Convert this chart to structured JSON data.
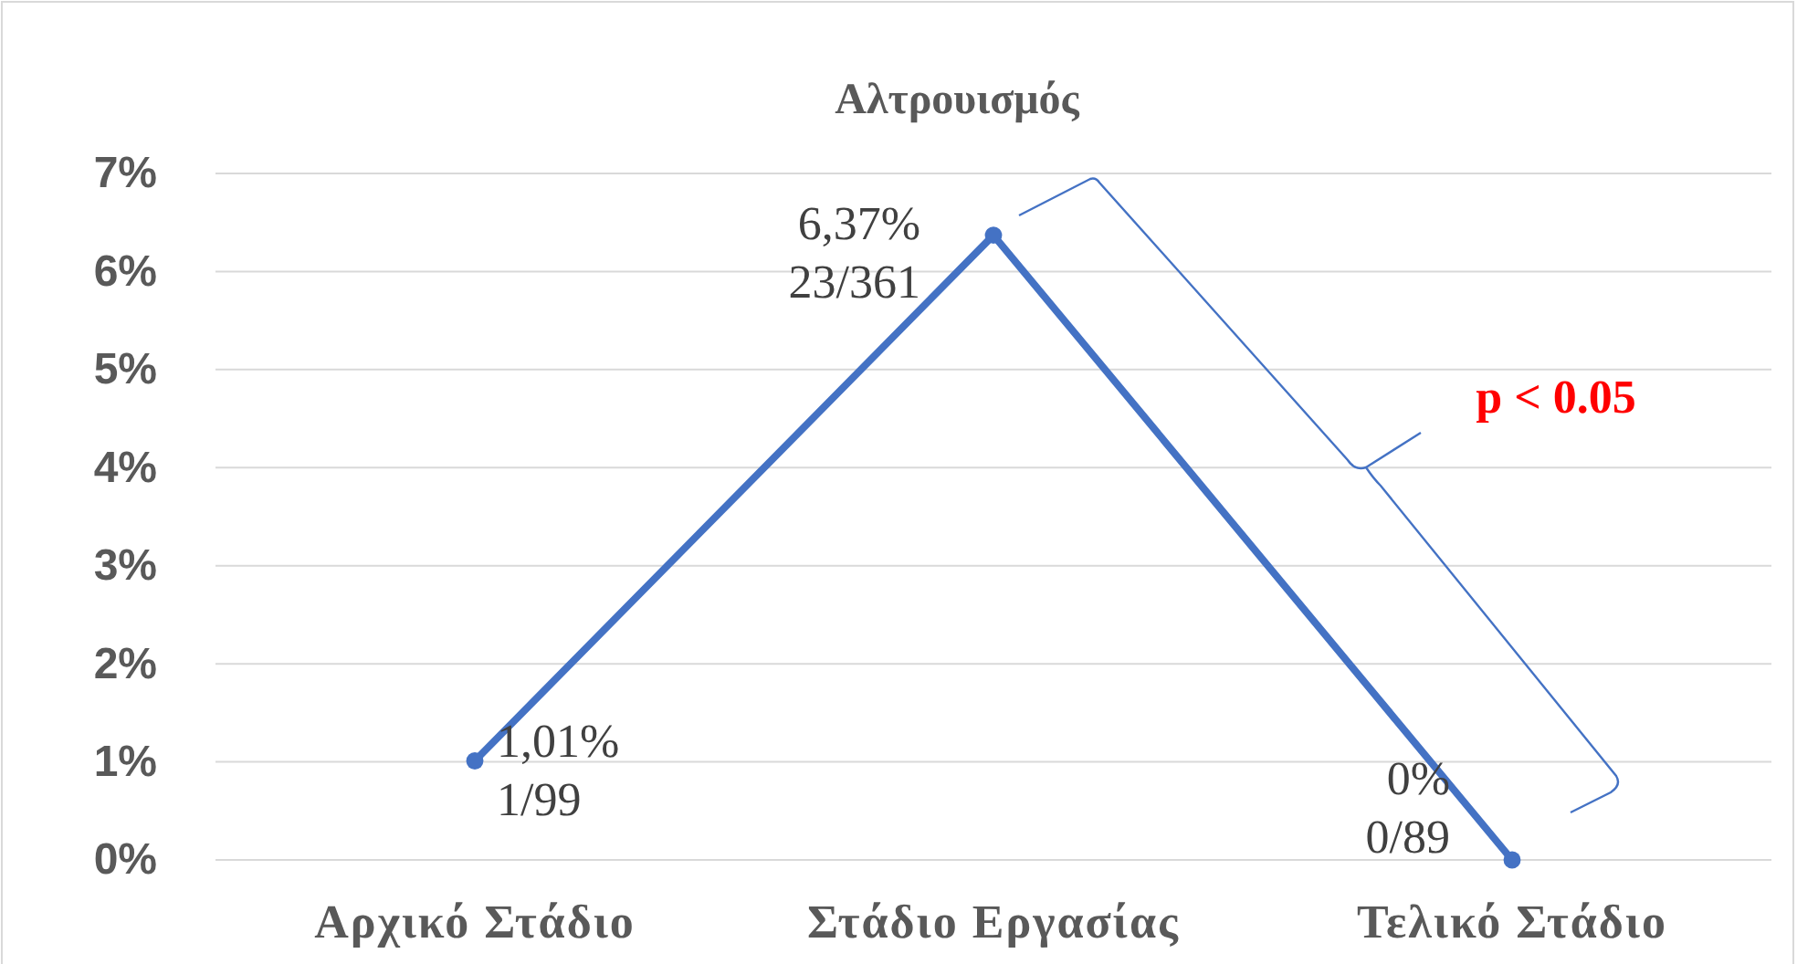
{
  "chart_data": {
    "type": "line",
    "title": "Αλτρουισμός",
    "categories": [
      "Αρχικό Στάδιο",
      "Στάδιο Εργασίας",
      "Τελικό Στάδιο"
    ],
    "series": [
      {
        "color": "#4472c4",
        "values": [
          1.01,
          6.37,
          0
        ],
        "value_labels": [
          "1,01%",
          "6,37%",
          "0%"
        ]
      }
    ],
    "ylim": [
      0,
      7
    ],
    "yticks": [
      {
        "value": 0,
        "label": "0%"
      },
      {
        "value": 1,
        "label": "1%"
      },
      {
        "value": 2,
        "label": "2%"
      },
      {
        "value": 3,
        "label": "3%"
      },
      {
        "value": 4,
        "label": "4%"
      },
      {
        "value": 5,
        "label": "5%"
      },
      {
        "value": 6,
        "label": "6%"
      },
      {
        "value": 7,
        "label": "7%"
      }
    ],
    "grid": "y",
    "marker": "circle",
    "line_style": "solid",
    "annotations": [
      "1/99",
      "23/361",
      "0/89",
      "p < 0.05"
    ]
  }
}
